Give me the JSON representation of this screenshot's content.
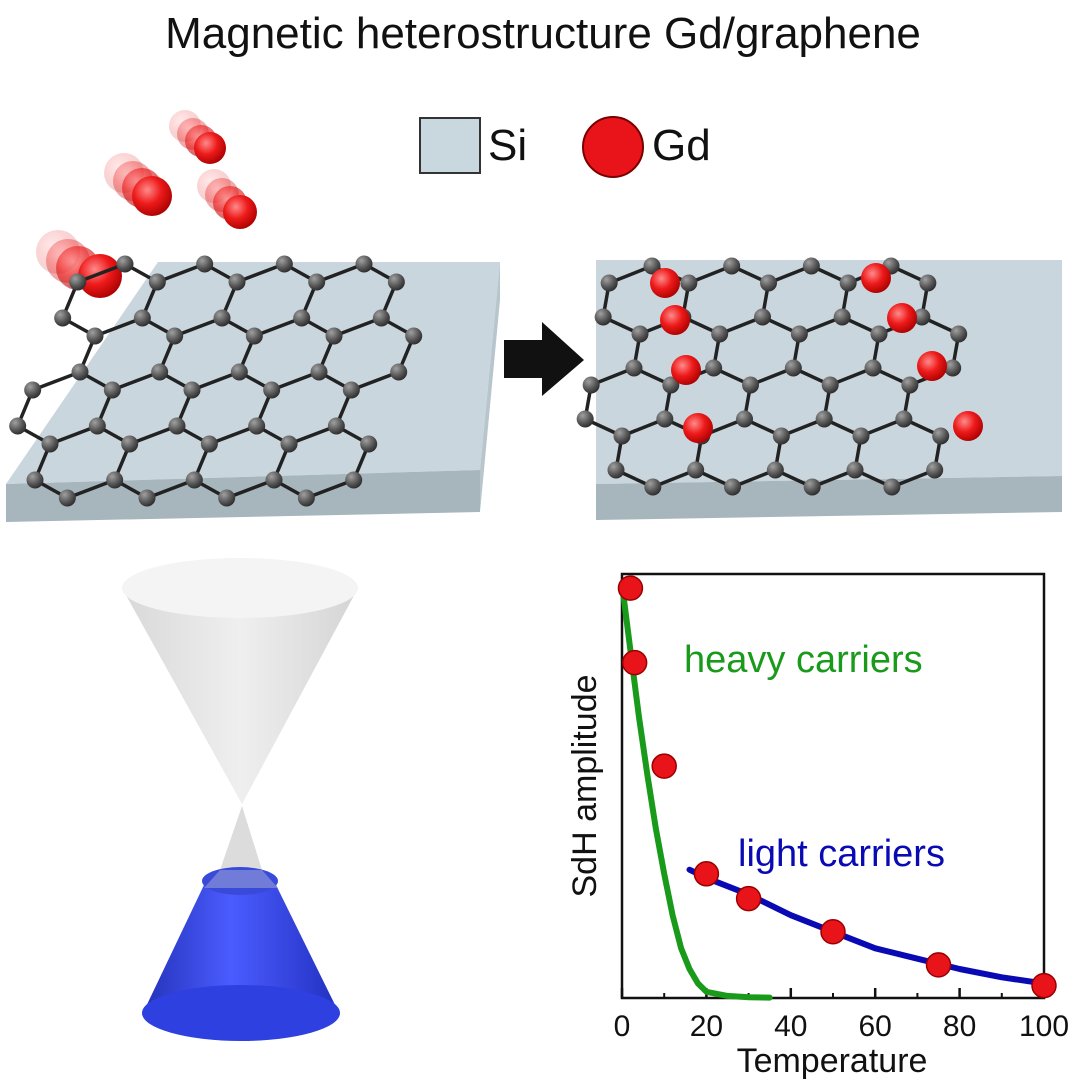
{
  "title": "Magnetic heterostructure Gd/graphene",
  "legend": {
    "si_label": "Si",
    "gd_label": "Gd",
    "si_color": "#c9d7df",
    "gd_color": "#e8141a"
  },
  "colors": {
    "carbon": "#555555",
    "bond": "#222222",
    "substrate_top": "#cad6dd",
    "substrate_side": "#a7b5bd",
    "cone_upper": "#e6e6e6",
    "cone_lower": "#2f3fe0",
    "heavy": "#1a9a1a",
    "light": "#0a0ab4",
    "point": "#e8141a"
  },
  "chart_data": {
    "type": "scatter",
    "xlabel": "Temperature",
    "ylabel": "SdH amplitude",
    "xlim": [
      0,
      100
    ],
    "ylim": [
      0,
      1.0
    ],
    "xticks": [
      0,
      20,
      40,
      60,
      80,
      100
    ],
    "xtick_labels": [
      "0",
      "20",
      "40",
      "60",
      "80",
      "100"
    ],
    "points": [
      {
        "x": 2,
        "y": 0.99
      },
      {
        "x": 3,
        "y": 0.81
      },
      {
        "x": 10,
        "y": 0.56
      },
      {
        "x": 20,
        "y": 0.3
      },
      {
        "x": 30,
        "y": 0.24
      },
      {
        "x": 50,
        "y": 0.16
      },
      {
        "x": 75,
        "y": 0.08
      },
      {
        "x": 100,
        "y": 0.03
      }
    ],
    "series": [
      {
        "name": "heavy carriers",
        "x": [
          0,
          2,
          4,
          6,
          8,
          10,
          12,
          14,
          16,
          18,
          20,
          25,
          30,
          35
        ],
        "y": [
          1.0,
          0.84,
          0.68,
          0.54,
          0.41,
          0.3,
          0.2,
          0.12,
          0.07,
          0.035,
          0.015,
          0.005,
          0.002,
          0.001
        ]
      },
      {
        "name": "light carriers",
        "x": [
          16,
          20,
          30,
          40,
          50,
          60,
          70,
          80,
          90,
          100
        ],
        "y": [
          0.31,
          0.29,
          0.25,
          0.2,
          0.16,
          0.12,
          0.095,
          0.07,
          0.05,
          0.035
        ]
      }
    ],
    "annotations": [
      "heavy carriers",
      "light carriers"
    ]
  }
}
